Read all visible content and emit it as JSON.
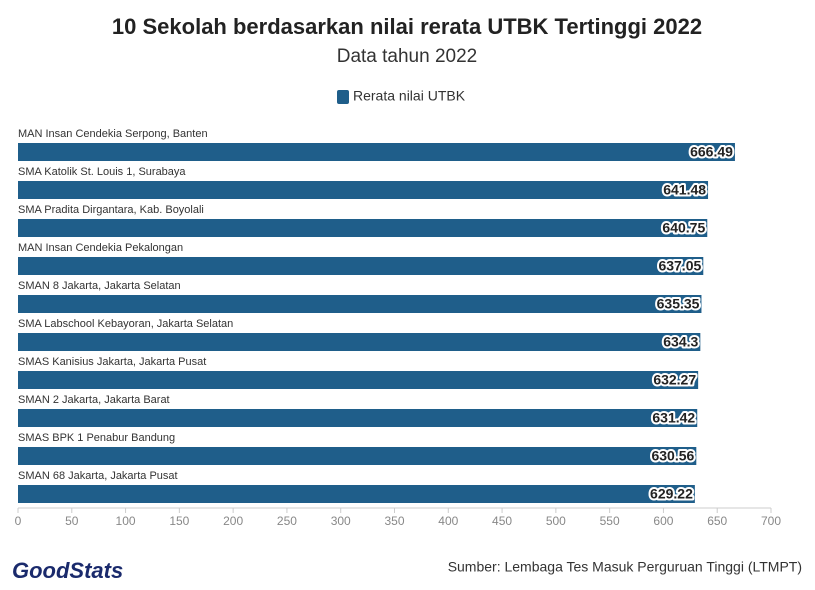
{
  "chart_data": {
    "type": "hbar",
    "title": "10 Sekolah berdasarkan nilai rerata UTBK Tertinggi 2022",
    "subtitle": "Data tahun 2022",
    "categories": [
      "MAN Insan Cendekia Serpong, Banten",
      "SMA Katolik St. Louis 1, Surabaya",
      "SMA Pradita Dirgantara, Kab. Boyolali",
      "MAN Insan Cendekia Pekalongan",
      "SMAN 8 Jakarta, Jakarta Selatan",
      "SMA Labschool Kebayoran, Jakarta Selatan",
      "SMAS Kanisius Jakarta, Jakarta Pusat",
      "SMAN 2 Jakarta, Jakarta Barat",
      "SMAS BPK 1 Penabur Bandung",
      "SMAN 68 Jakarta, Jakarta Pusat"
    ],
    "series": [
      {
        "name": "Rerata nilai UTBK",
        "color": "#1f5e8a",
        "values": [
          666.49,
          641.48,
          640.75,
          637.05,
          635.35,
          634.3,
          632.27,
          631.42,
          630.56,
          629.22
        ]
      }
    ],
    "xlim": [
      0,
      700
    ],
    "xticks": [
      0,
      50,
      100,
      150,
      200,
      250,
      300,
      350,
      400,
      450,
      500,
      550,
      600,
      650,
      700
    ],
    "grid": false,
    "legend": "top",
    "source": "Sumber: Lembaga Tes Masuk Perguruan Tinggi (LTMPT)",
    "logo": "GoodStats"
  }
}
